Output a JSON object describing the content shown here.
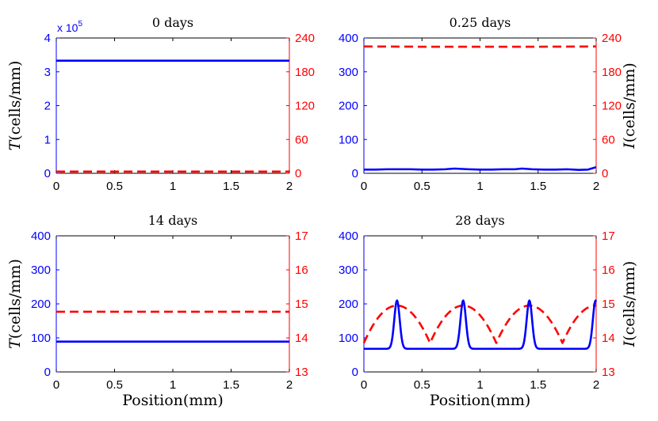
{
  "colors": {
    "left": "#0000ff",
    "right": "#ff0000",
    "axis": "#000000"
  },
  "chart_data": [
    {
      "type": "line",
      "title": "0 days",
      "xlabel": "",
      "ylabel_italic": "T",
      "ylabel_rest": "(cells/mm)",
      "xlim": [
        0,
        2
      ],
      "xticks": [
        "0",
        "0.5",
        "1",
        "1.5",
        "2"
      ],
      "xtick_values": [
        0,
        0.5,
        1,
        1.5,
        2
      ],
      "ylim_left": [
        0,
        4
      ],
      "yticks_left": [
        "0",
        "1",
        "2",
        "3",
        "4"
      ],
      "ytick_values_left": [
        0,
        1,
        2,
        3,
        4
      ],
      "left_scale_label": "x 10",
      "left_scale_exp": "5",
      "ylim_right": [
        0,
        240
      ],
      "yticks_right": [
        "0",
        "60",
        "120",
        "180",
        "240"
      ],
      "ytick_values_right": [
        0,
        60,
        120,
        180,
        240
      ],
      "series": [
        {
          "name": "T",
          "axis": "left",
          "style": "solid",
          "x": [
            0,
            2
          ],
          "values": [
            3.33,
            3.33
          ]
        },
        {
          "name": "I",
          "axis": "right",
          "style": "dashed",
          "x": [
            0,
            2
          ],
          "values": [
            3,
            3
          ]
        }
      ]
    },
    {
      "type": "line",
      "title": "0.25 days",
      "xlabel": "",
      "ylabel_italic": "I",
      "ylabel_rest": "(cells/mm)",
      "xlim": [
        0,
        2
      ],
      "xticks": [
        "0",
        "0.5",
        "1",
        "1.5",
        "2"
      ],
      "xtick_values": [
        0,
        0.5,
        1,
        1.5,
        2
      ],
      "ylim_left": [
        0,
        400
      ],
      "yticks_left": [
        "0",
        "100",
        "200",
        "300",
        "400"
      ],
      "ytick_values_left": [
        0,
        100,
        200,
        300,
        400
      ],
      "ylim_right": [
        0,
        240
      ],
      "yticks_right": [
        "0",
        "60",
        "120",
        "180",
        "240"
      ],
      "ytick_values_right": [
        0,
        60,
        120,
        180,
        240
      ],
      "series": [
        {
          "name": "T",
          "axis": "left",
          "style": "solid",
          "x": [
            0,
            0.1,
            0.2,
            0.3,
            0.4,
            0.5,
            0.6,
            0.7,
            0.78,
            0.9,
            1.0,
            1.1,
            1.2,
            1.3,
            1.36,
            1.45,
            1.55,
            1.65,
            1.75,
            1.85,
            1.93,
            2.0
          ],
          "values": [
            11,
            11,
            12,
            12,
            12,
            11,
            11,
            12,
            14,
            12,
            11,
            11,
            12,
            12,
            14,
            12,
            11,
            11,
            12,
            10,
            11,
            18
          ]
        },
        {
          "name": "I",
          "axis": "right",
          "style": "dashed",
          "x": [
            0,
            0.5,
            1,
            1.5,
            2
          ],
          "values": [
            225,
            224.5,
            224.5,
            224.5,
            225
          ]
        }
      ]
    },
    {
      "type": "line",
      "title": "14 days",
      "xlabel": "Position(mm)",
      "ylabel_italic": "T",
      "ylabel_rest": "(cells/mm)",
      "xlim": [
        0,
        2
      ],
      "xticks": [
        "0",
        "0.5",
        "1",
        "1.5",
        "2"
      ],
      "xtick_values": [
        0,
        0.5,
        1,
        1.5,
        2
      ],
      "ylim_left": [
        0,
        400
      ],
      "yticks_left": [
        "0",
        "100",
        "200",
        "300",
        "400"
      ],
      "ytick_values_left": [
        0,
        100,
        200,
        300,
        400
      ],
      "ylim_right": [
        13,
        17
      ],
      "yticks_right": [
        "13",
        "14",
        "15",
        "16",
        "17"
      ],
      "ytick_values_right": [
        13,
        14,
        15,
        16,
        17
      ],
      "series": [
        {
          "name": "T",
          "axis": "left",
          "style": "solid",
          "x": [
            0,
            2
          ],
          "values": [
            89,
            89
          ]
        },
        {
          "name": "I",
          "axis": "right",
          "style": "dashed",
          "x": [
            0,
            2
          ],
          "values": [
            14.77,
            14.77
          ]
        }
      ]
    },
    {
      "type": "line",
      "title": "28 days",
      "xlabel": "Position(mm)",
      "ylabel_italic": "I",
      "ylabel_rest": "(cells/mm)",
      "xlim": [
        0,
        2
      ],
      "xticks": [
        "0",
        "0.5",
        "1",
        "1.5",
        "2"
      ],
      "xtick_values": [
        0,
        0.5,
        1,
        1.5,
        2
      ],
      "ylim_left": [
        0,
        400
      ],
      "yticks_left": [
        "0",
        "100",
        "200",
        "300",
        "400"
      ],
      "ytick_values_left": [
        0,
        100,
        200,
        300,
        400
      ],
      "ylim_right": [
        13,
        17
      ],
      "yticks_right": [
        "13",
        "14",
        "15",
        "16",
        "17"
      ],
      "ytick_values_right": [
        13,
        14,
        15,
        16,
        17
      ],
      "series": [
        {
          "name": "T",
          "axis": "left",
          "style": "solid",
          "model": "peaks",
          "peak_centers": [
            0.285,
            0.855,
            1.425,
            1.995
          ],
          "baseline": 68,
          "peak_height": 210,
          "peak_width": 0.033
        },
        {
          "name": "I",
          "axis": "right",
          "style": "dashed",
          "model": "arches",
          "minima": [
            0,
            0.57,
            1.14,
            1.71
          ],
          "maxima": [
            0.285,
            0.855,
            1.425,
            1.995
          ],
          "min_value": 13.85,
          "max_value": 14.95
        }
      ]
    }
  ]
}
